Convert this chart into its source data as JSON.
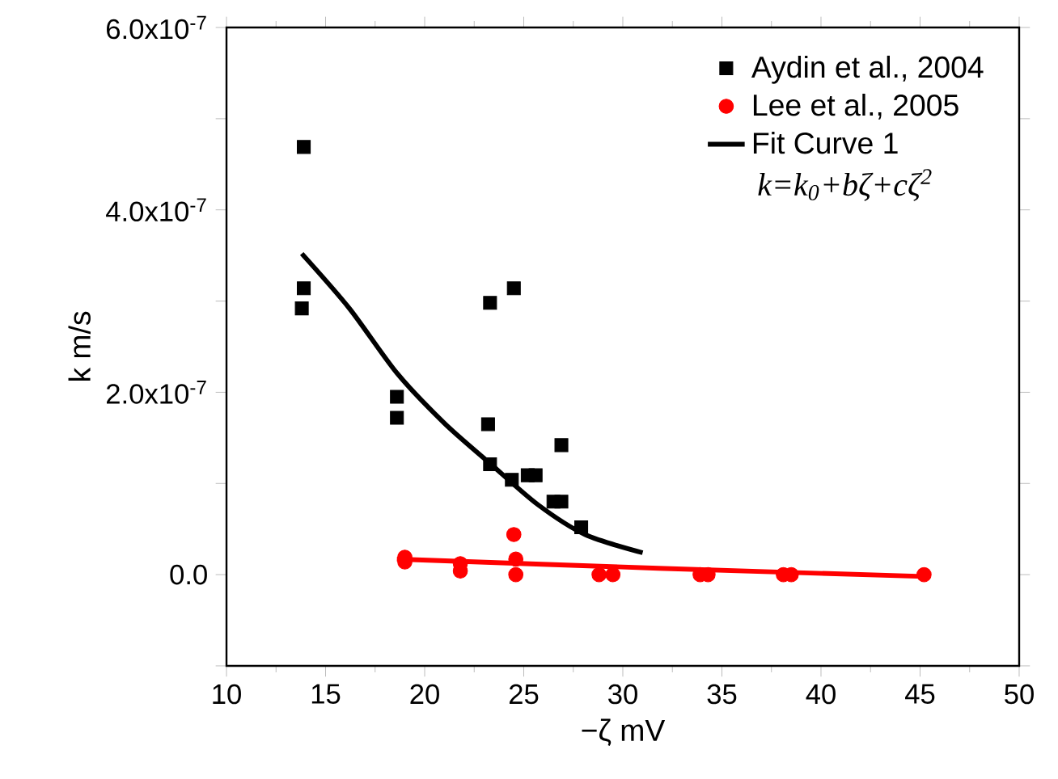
{
  "chart_data": {
    "type": "scatter",
    "xlabel": "−ζ mV",
    "ylabel": "k m/s",
    "xlim": [
      10,
      50
    ],
    "xticks": [
      10,
      15,
      20,
      25,
      30,
      35,
      40,
      45,
      50
    ],
    "ylim": [
      -1e-07,
      6e-07
    ],
    "yticks": [
      {
        "value": -1e-07,
        "label": null
      },
      {
        "value": 0,
        "label": "0.0"
      },
      {
        "value": 1e-07,
        "label": null
      },
      {
        "value": 2e-07,
        "label": "2.0x10$^{-7}$"
      },
      {
        "value": 3e-07,
        "label": null
      },
      {
        "value": 4e-07,
        "label": "4.0x10$^{-7}$"
      },
      {
        "value": 5e-07,
        "label": null
      },
      {
        "value": 6e-07,
        "label": "6.0x10$^{-7}$"
      }
    ],
    "grid": false,
    "legend": "top right",
    "annotations": [
      "k=k$_{0}$+bζ+cζ$^{2}$"
    ],
    "series": [
      {
        "name": "Aydin et al., 2004",
        "marker": "square",
        "color": "#000000",
        "x": [
          13.9,
          13.9,
          13.8,
          18.6,
          18.6,
          23.3,
          24.5,
          23.2,
          23.3,
          24.4,
          25.2,
          25.6,
          26.9,
          26.5,
          26.9,
          27.9
        ],
        "values": [
          4.69e-07,
          3.14e-07,
          2.92e-07,
          1.95e-07,
          1.72e-07,
          2.98e-07,
          3.14e-07,
          1.65e-07,
          1.21e-07,
          1.04e-07,
          1.09e-07,
          1.09e-07,
          1.42e-07,
          8e-08,
          8e-08,
          5.2e-08
        ]
      },
      {
        "name": "Lee et al., 2005",
        "marker": "circle",
        "color": "#ff0000",
        "x": [
          19.0,
          19.0,
          21.8,
          21.8,
          24.5,
          24.6,
          24.6,
          28.8,
          29.5,
          33.9,
          34.3,
          38.1,
          38.5,
          45.2
        ],
        "values": [
          1.9e-08,
          1.4e-08,
          1.2e-08,
          4e-09,
          4.4e-08,
          1.7e-08,
          0.0,
          0.0,
          0.0,
          0.0,
          0.0,
          0.0,
          0.0,
          0.0
        ]
      },
      {
        "name": "Fit Curve 1",
        "type": "line",
        "marker": "none",
        "color": "#000000",
        "x": [
          13.8,
          16.2,
          18.6,
          21.0,
          23.3,
          25.7,
          28.1,
          31.0
        ],
        "values": [
          3.52e-07,
          2.92e-07,
          2.21e-07,
          1.66e-07,
          1.22e-07,
          7.7e-08,
          4.4e-08,
          2.4e-08
        ]
      },
      {
        "type": "line",
        "marker": "none",
        "color": "#ff0000",
        "x": [
          18.6,
          31.8,
          45.2
        ],
        "values": [
          1.7e-08,
          7e-09,
          -2e-09
        ]
      }
    ]
  }
}
